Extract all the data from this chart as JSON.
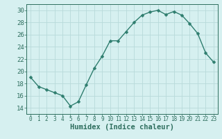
{
  "x": [
    0,
    1,
    2,
    3,
    4,
    5,
    6,
    7,
    8,
    9,
    10,
    11,
    12,
    13,
    14,
    15,
    16,
    17,
    18,
    19,
    20,
    21,
    22,
    23
  ],
  "y": [
    19,
    17.5,
    17,
    16.5,
    16,
    14.3,
    15,
    17.8,
    20.5,
    22.5,
    25,
    25,
    26.5,
    28,
    29.2,
    29.7,
    30,
    29.3,
    29.8,
    29.2,
    27.8,
    26.2,
    23,
    21.5
  ],
  "line_color": "#2e7d6e",
  "marker": "D",
  "markersize": 2.5,
  "linewidth": 1.0,
  "xlabel": "Humidex (Indice chaleur)",
  "xlim": [
    -0.5,
    23.5
  ],
  "ylim": [
    13,
    31
  ],
  "yticks": [
    14,
    16,
    18,
    20,
    22,
    24,
    26,
    28,
    30
  ],
  "xticks": [
    0,
    1,
    2,
    3,
    4,
    5,
    6,
    7,
    8,
    9,
    10,
    11,
    12,
    13,
    14,
    15,
    16,
    17,
    18,
    19,
    20,
    21,
    22,
    23
  ],
  "bg_color": "#d6f0f0",
  "grid_color": "#b8dada",
  "tick_color": "#2e6e5e",
  "axis_color": "#2e6e5e",
  "xlabel_fontsize": 7.5,
  "ytick_fontsize": 6.5,
  "xtick_fontsize": 5.5
}
